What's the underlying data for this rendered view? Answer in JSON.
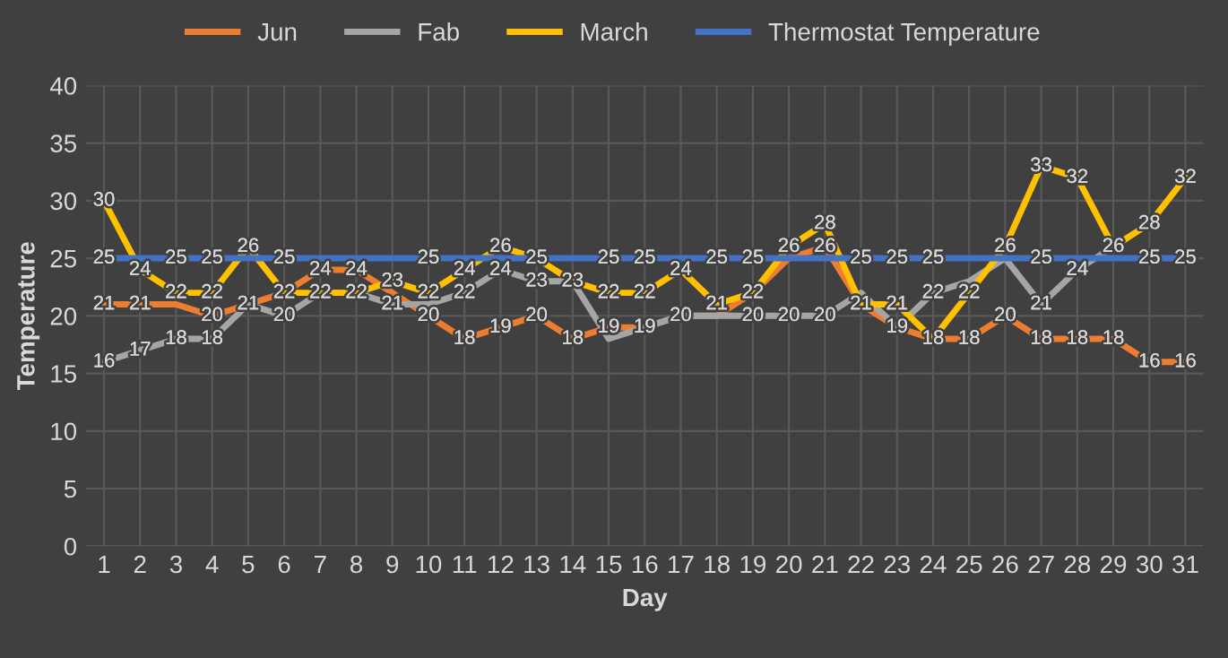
{
  "chart_data": {
    "type": "line",
    "xlabel": "Day",
    "ylabel": "Temperature",
    "categories": [
      "1",
      "2",
      "3",
      "4",
      "5",
      "6",
      "7",
      "8",
      "9",
      "10",
      "11",
      "12",
      "13",
      "14",
      "15",
      "16",
      "17",
      "18",
      "19",
      "20",
      "21",
      "22",
      "23",
      "24",
      "25",
      "26",
      "27",
      "28",
      "29",
      "30",
      "31"
    ],
    "series": [
      {
        "name": "Jun",
        "color": "#ed7d31",
        "values": [
          21,
          21,
          21,
          20,
          21,
          22,
          24,
          24,
          22,
          20,
          18,
          19,
          20,
          18,
          19,
          19,
          20,
          20,
          22,
          25,
          26,
          21,
          19,
          18,
          18,
          20,
          18,
          18,
          18,
          16,
          16
        ],
        "value_labels": [
          "21",
          "21",
          null,
          "20",
          "21",
          null,
          "24",
          "24",
          null,
          "20",
          "18",
          "19",
          "20",
          "18",
          "19",
          "19",
          "20",
          null,
          null,
          null,
          "26",
          null,
          "19",
          null,
          "18",
          "20",
          "18",
          "18",
          "18",
          "16",
          "16"
        ]
      },
      {
        "name": "Fab",
        "color": "#a5a5a5",
        "values": [
          16,
          17,
          18,
          18,
          21,
          20,
          22,
          22,
          21,
          21,
          22,
          24,
          23,
          23,
          18,
          19,
          20,
          20,
          20,
          20,
          20,
          22,
          19,
          22,
          23,
          25,
          21,
          24,
          26,
          null,
          null
        ],
        "value_labels": [
          "16",
          "17",
          "18",
          "18",
          null,
          "20",
          null,
          null,
          "21",
          null,
          "22",
          "24",
          "23",
          null,
          null,
          null,
          null,
          null,
          "20",
          "20",
          "20",
          null,
          null,
          "22",
          null,
          null,
          "21",
          "24",
          null,
          null,
          null
        ]
      },
      {
        "name": "March",
        "color": "#ffc000",
        "values": [
          30,
          24,
          22,
          22,
          26,
          22,
          22,
          22,
          23,
          22,
          24,
          26,
          25,
          23,
          22,
          22,
          24,
          21,
          22,
          26,
          28,
          21,
          21,
          18,
          22,
          26,
          33,
          32,
          26,
          28,
          32
        ],
        "value_labels": [
          "30",
          "24",
          "22",
          "22",
          "26",
          "22",
          "22",
          "22",
          "23",
          "22",
          "24",
          "26",
          "25",
          "23",
          "22",
          "22",
          "24",
          "21",
          "22",
          "26",
          "28",
          "21",
          "21",
          "18",
          "22",
          "26",
          "33",
          "32",
          "26",
          "28",
          "32"
        ]
      },
      {
        "name": "Thermostat Temperature",
        "color": "#4472c4",
        "values": [
          25,
          25,
          25,
          25,
          25,
          25,
          25,
          25,
          25,
          25,
          25,
          25,
          25,
          25,
          25,
          25,
          25,
          25,
          25,
          25,
          25,
          25,
          25,
          25,
          25,
          25,
          25,
          25,
          25,
          25,
          25
        ],
        "value_labels": [
          "25",
          null,
          "25",
          "25",
          null,
          "25",
          null,
          null,
          null,
          "25",
          null,
          null,
          null,
          null,
          "25",
          "25",
          null,
          "25",
          "25",
          null,
          null,
          "25",
          "25",
          "25",
          null,
          null,
          "25",
          null,
          null,
          "25",
          "25"
        ]
      }
    ],
    "ylim": [
      0,
      40
    ],
    "yticks": [
      0,
      5,
      10,
      15,
      20,
      25,
      30,
      35,
      40
    ],
    "grid": true,
    "legend": "top",
    "marker": "none",
    "line_style": "solid"
  }
}
